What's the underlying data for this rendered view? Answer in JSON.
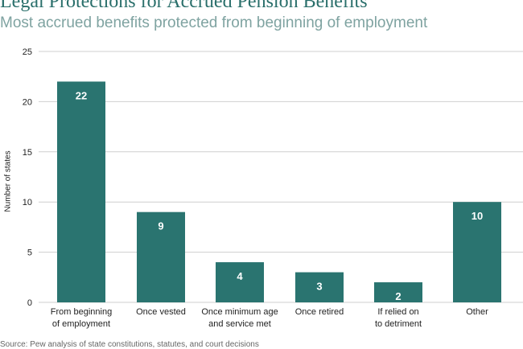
{
  "chart_data": {
    "type": "bar",
    "title": "Legal Protections for Accrued Pension Benefits",
    "subtitle": "Most accrued benefits protected from beginning of employment",
    "ylabel": "Number of states",
    "xlabel": "",
    "categories": [
      [
        "From beginning",
        "of employment"
      ],
      [
        "Once vested"
      ],
      [
        "Once minimum age",
        "and service met"
      ],
      [
        "Once retired"
      ],
      [
        "If relied on",
        "to detriment"
      ],
      [
        "Other"
      ]
    ],
    "values": [
      22,
      9,
      4,
      3,
      2,
      10
    ],
    "ylim": [
      0,
      25
    ],
    "yticks": [
      0,
      5,
      10,
      15,
      20,
      25
    ],
    "grid": true,
    "bar_color": "#2a7470",
    "source": "Source: Pew analysis of state constitutions, statutes, and court decisions"
  }
}
